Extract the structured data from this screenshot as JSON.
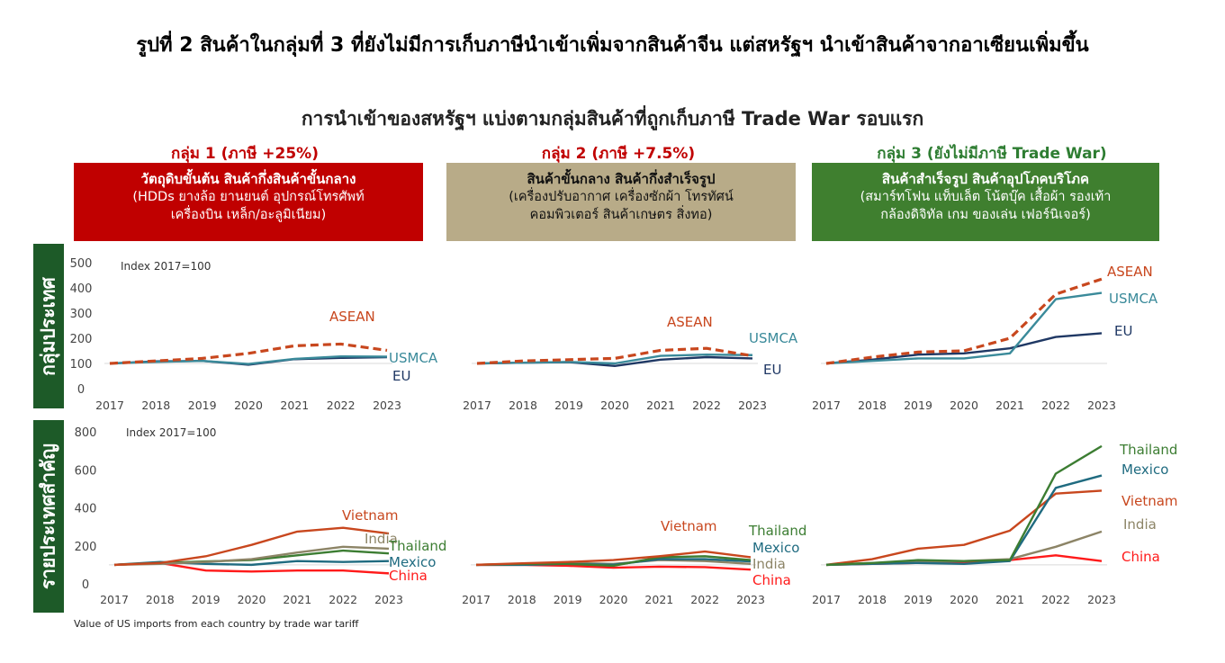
{
  "header": {
    "title": "รูปที่ 2 สินค้าในกลุ่มที่ 3 ที่ยังไม่มีการเก็บภาษีนำเข้าเพิ่มจากสินค้าจีน แต่สหรัฐฯ นำเข้าสินค้าจากอาเซียนเพิ่มขึ้น",
    "subtitle": "การนำเข้าของสหรัฐฯ แบ่งตามกลุ่มสินค้าที่ถูกเก็บภาษี Trade War รอบแรก"
  },
  "groups": [
    {
      "heading": "กลุ่ม 1 (ภาษี +25%)",
      "line1": "วัตถุดิบขั้นต้น สินค้ากึ่งสินค้าขั้นกลาง",
      "line2": "(HDDs ยางล้อ ยานยนต์ อุปกรณ์โทรศัพท์",
      "line3": "เครื่องบิน เหล็ก/อะลูมิเนียม)",
      "heading_color": "#c00000",
      "box_color": "#c00000"
    },
    {
      "heading": "กลุ่ม 2 (ภาษี +7.5%)",
      "line1": "สินค้าขั้นกลาง สินค้ากึ่งสำเร็จรูป",
      "line2": "(เครื่องปรับอากาศ เครื่องซักผ้า โทรทัศน์",
      "line3": "คอมพิวเตอร์ สินค้าเกษตร สิ่งทอ)",
      "heading_color": "#c00000",
      "box_color": "#b8ab88"
    },
    {
      "heading": "กลุ่ม 3 (ยังไม่มีภาษี Trade War)",
      "line1": "สินค้าสำเร็จรูป สินค้าอุปโภคบริโภค",
      "line2": "(สมาร์ทโฟน แท็บเล็ต โน้ตบุ๊ค เสื้อผ้า รองเท้า",
      "line3": "กล้องดิจิทัล เกม ของเล่น เฟอร์นิเจอร์)",
      "heading_color": "#2e7d32",
      "box_color": "#3f7f2f"
    }
  ],
  "side_labels": {
    "top": "กลุ่มประเทศ",
    "bottom": "รายประเทศสำคัญ",
    "color": "#1d5a28"
  },
  "footnote": "Value of US imports from each country by trade war tariff",
  "colors": {
    "ASEAN": "#c8471e",
    "USMCA": "#3a8a9a",
    "EU": "#1f3864",
    "Vietnam": "#c8471e",
    "India": "#8c8466",
    "Thailand": "#3c7d32",
    "Mexico": "#1f6b80",
    "China": "#ff1a1a"
  },
  "chart_data": [
    {
      "id": "blocs-g1",
      "type": "line",
      "x": [
        "2017",
        "2018",
        "2019",
        "2020",
        "2021",
        "2022",
        "2023"
      ],
      "ylim": [
        0,
        500
      ],
      "yticks": [
        0,
        100,
        200,
        300,
        400,
        500
      ],
      "note": "Index 2017=100",
      "show_yaxis": true,
      "series": [
        {
          "name": "ASEAN",
          "dashed": true,
          "values": [
            100,
            110,
            120,
            140,
            170,
            177,
            152
          ]
        },
        {
          "name": "USMCA",
          "values": [
            100,
            106,
            110,
            98,
            118,
            128,
            127
          ]
        },
        {
          "name": "EU",
          "values": [
            100,
            108,
            110,
            95,
            117,
            122,
            125
          ]
        }
      ]
    },
    {
      "id": "blocs-g2",
      "type": "line",
      "x": [
        "2017",
        "2018",
        "2019",
        "2020",
        "2021",
        "2022",
        "2023"
      ],
      "ylim": [
        0,
        500
      ],
      "yticks": [
        0,
        100,
        200,
        300,
        400,
        500
      ],
      "show_yaxis": false,
      "series": [
        {
          "name": "ASEAN",
          "dashed": true,
          "values": [
            100,
            110,
            115,
            120,
            152,
            160,
            130
          ]
        },
        {
          "name": "USMCA",
          "values": [
            100,
            103,
            106,
            100,
            130,
            135,
            133
          ]
        },
        {
          "name": "EU",
          "values": [
            100,
            103,
            105,
            90,
            115,
            125,
            120
          ]
        }
      ]
    },
    {
      "id": "blocs-g3",
      "type": "line",
      "x": [
        "2017",
        "2018",
        "2019",
        "2020",
        "2021",
        "2022",
        "2023"
      ],
      "ylim": [
        0,
        500
      ],
      "yticks": [
        0,
        100,
        200,
        300,
        400,
        500
      ],
      "show_yaxis": false,
      "series": [
        {
          "name": "ASEAN",
          "dashed": true,
          "values": [
            100,
            125,
            145,
            150,
            200,
            375,
            435
          ]
        },
        {
          "name": "USMCA",
          "values": [
            100,
            110,
            120,
            120,
            140,
            355,
            380
          ]
        },
        {
          "name": "EU",
          "values": [
            100,
            115,
            135,
            140,
            160,
            205,
            220
          ]
        }
      ]
    },
    {
      "id": "countries-g1",
      "type": "line",
      "x": [
        "2017",
        "2018",
        "2019",
        "2020",
        "2021",
        "2022",
        "2023"
      ],
      "ylim": [
        0,
        800
      ],
      "yticks": [
        0,
        200,
        400,
        600,
        800
      ],
      "note": "Index 2017=100",
      "show_yaxis": true,
      "series": [
        {
          "name": "Vietnam",
          "values": [
            100,
            110,
            145,
            205,
            275,
            295,
            265
          ]
        },
        {
          "name": "India",
          "values": [
            100,
            105,
            115,
            130,
            165,
            195,
            185
          ]
        },
        {
          "name": "Thailand",
          "values": [
            100,
            110,
            118,
            125,
            150,
            175,
            160
          ]
        },
        {
          "name": "Mexico",
          "values": [
            100,
            115,
            105,
            100,
            120,
            115,
            120
          ]
        },
        {
          "name": "China",
          "values": [
            100,
            110,
            70,
            65,
            70,
            70,
            55
          ]
        }
      ]
    },
    {
      "id": "countries-g2",
      "type": "line",
      "x": [
        "2017",
        "2018",
        "2019",
        "2020",
        "2021",
        "2022",
        "2023"
      ],
      "ylim": [
        0,
        800
      ],
      "yticks": [
        0,
        200,
        400,
        600,
        800
      ],
      "show_yaxis": false,
      "series": [
        {
          "name": "Vietnam",
          "values": [
            100,
            108,
            115,
            125,
            145,
            170,
            140
          ]
        },
        {
          "name": "Thailand",
          "values": [
            100,
            105,
            105,
            95,
            140,
            145,
            125
          ]
        },
        {
          "name": "Mexico",
          "values": [
            100,
            100,
            105,
            100,
            130,
            130,
            118
          ]
        },
        {
          "name": "India",
          "values": [
            100,
            105,
            110,
            105,
            125,
            120,
            105
          ]
        },
        {
          "name": "China",
          "values": [
            100,
            100,
            95,
            85,
            90,
            88,
            75
          ]
        }
      ]
    },
    {
      "id": "countries-g3",
      "type": "line",
      "x": [
        "2017",
        "2018",
        "2019",
        "2020",
        "2021",
        "2022",
        "2023"
      ],
      "ylim": [
        0,
        800
      ],
      "yticks": [
        0,
        200,
        400,
        600,
        800
      ],
      "show_yaxis": false,
      "series": [
        {
          "name": "Thailand",
          "values": [
            100,
            110,
            125,
            120,
            125,
            580,
            725
          ]
        },
        {
          "name": "Mexico",
          "values": [
            100,
            105,
            110,
            105,
            120,
            505,
            570
          ]
        },
        {
          "name": "Vietnam",
          "values": [
            100,
            130,
            185,
            205,
            280,
            475,
            490
          ]
        },
        {
          "name": "India",
          "values": [
            100,
            110,
            115,
            120,
            130,
            195,
            275
          ]
        },
        {
          "name": "China",
          "values": [
            100,
            105,
            110,
            115,
            125,
            150,
            120
          ]
        }
      ]
    }
  ]
}
